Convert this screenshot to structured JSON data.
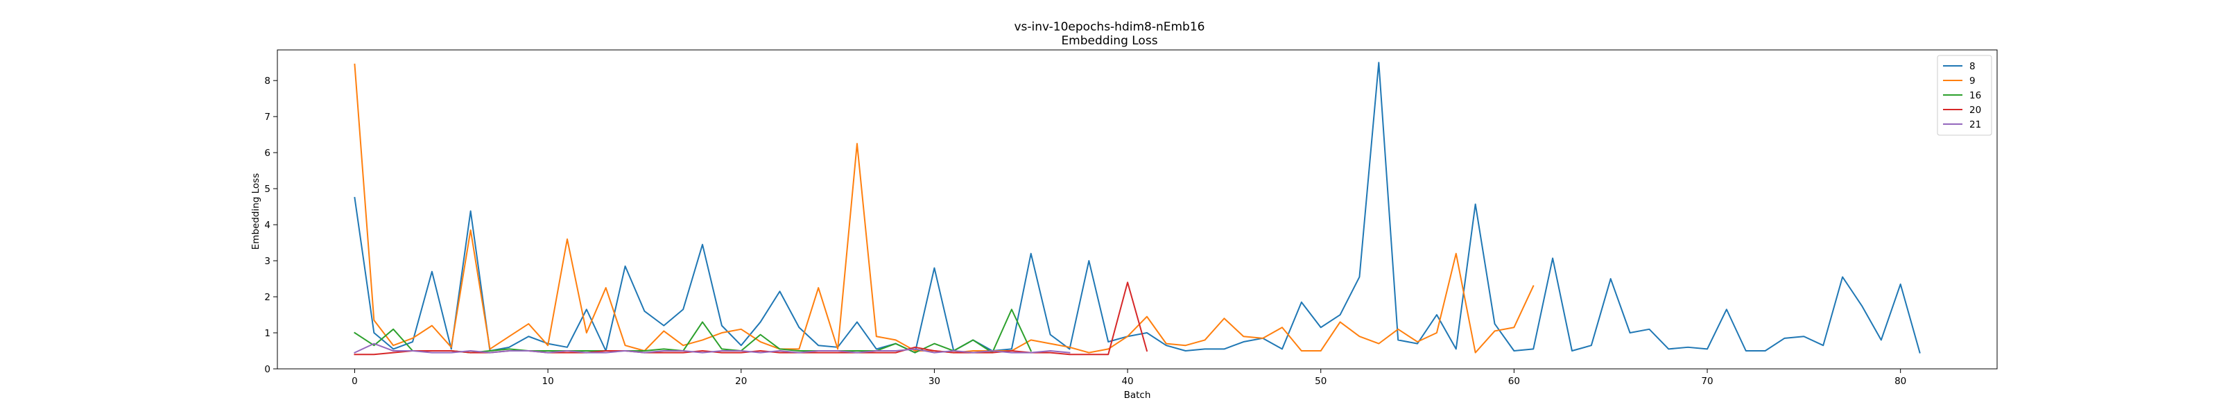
{
  "chart_data": {
    "type": "line",
    "title": "vs-inv-10epochs-hdim8-nEmb16",
    "subtitle": "Embedding Loss",
    "xlabel": "Batch",
    "ylabel": "Embedding Loss",
    "xlim": [
      -4,
      85
    ],
    "ylim": [
      0,
      8.85
    ],
    "xticks": [
      0,
      10,
      20,
      30,
      40,
      50,
      60,
      70,
      80
    ],
    "yticks": [
      0,
      1,
      2,
      3,
      4,
      5,
      6,
      7,
      8
    ],
    "grid": false,
    "legend_position": "top-right",
    "series": [
      {
        "name": "8",
        "color": "#1f77b4",
        "x": [
          0,
          1,
          2,
          3,
          4,
          5,
          6,
          7,
          8,
          9,
          10,
          11,
          12,
          13,
          14,
          15,
          16,
          17,
          18,
          19,
          20,
          21,
          22,
          23,
          24,
          25,
          26,
          27,
          28,
          29,
          30,
          31,
          32,
          33,
          34,
          35,
          36,
          37,
          38,
          39,
          40,
          41,
          42,
          43,
          44,
          45,
          46,
          47,
          48,
          49,
          50,
          51,
          52,
          53,
          54,
          55,
          56,
          57,
          58,
          59,
          60,
          61,
          62,
          63,
          64,
          65,
          66,
          67,
          68,
          69,
          70,
          71,
          72,
          73,
          74,
          75,
          76,
          77,
          78,
          79,
          80,
          81
        ],
        "values": [
          4.75,
          1.0,
          0.55,
          0.75,
          2.7,
          0.55,
          4.38,
          0.5,
          0.6,
          0.9,
          0.7,
          0.6,
          1.65,
          0.5,
          2.85,
          1.6,
          1.2,
          1.65,
          3.45,
          1.2,
          0.65,
          1.3,
          2.15,
          1.15,
          0.65,
          0.6,
          1.3,
          0.55,
          0.7,
          0.45,
          2.8,
          0.5,
          0.8,
          0.5,
          0.55,
          3.2,
          0.95,
          0.55,
          3.0,
          0.75,
          0.9,
          1.0,
          0.65,
          0.5,
          0.55,
          0.55,
          0.75,
          0.85,
          0.55,
          1.85,
          1.15,
          1.5,
          2.55,
          8.5,
          0.8,
          0.7,
          1.5,
          0.55,
          4.57,
          1.25,
          0.5,
          0.55,
          3.07,
          0.5,
          0.65,
          2.5,
          1.0,
          1.1,
          0.55,
          0.6,
          0.55,
          1.65,
          0.5,
          0.5,
          0.85,
          0.9,
          0.65,
          2.55,
          1.75,
          0.8,
          2.35,
          0.45
        ]
      },
      {
        "name": "9",
        "color": "#ff7f0e",
        "x": [
          0,
          1,
          2,
          3,
          4,
          5,
          6,
          7,
          8,
          9,
          10,
          11,
          12,
          13,
          14,
          15,
          16,
          17,
          18,
          19,
          20,
          21,
          22,
          23,
          24,
          25,
          26,
          27,
          28,
          29,
          30,
          31,
          32,
          33,
          34,
          35,
          36,
          37,
          38,
          39,
          40,
          41,
          42,
          43,
          44,
          45,
          46,
          47,
          48,
          49,
          50,
          51,
          52,
          53,
          54,
          55,
          56,
          57,
          58,
          59,
          60,
          61
        ],
        "values": [
          8.45,
          1.35,
          0.65,
          0.85,
          1.2,
          0.6,
          3.85,
          0.55,
          0.9,
          1.25,
          0.65,
          3.6,
          1.0,
          2.25,
          0.65,
          0.5,
          1.05,
          0.65,
          0.8,
          1.0,
          1.1,
          0.75,
          0.55,
          0.55,
          2.25,
          0.55,
          6.25,
          0.9,
          0.8,
          0.5,
          0.5,
          0.45,
          0.5,
          0.5,
          0.5,
          0.8,
          0.7,
          0.6,
          0.45,
          0.55,
          0.9,
          1.45,
          0.7,
          0.65,
          0.8,
          1.4,
          0.9,
          0.85,
          1.15,
          0.5,
          0.5,
          1.3,
          0.9,
          0.7,
          1.1,
          0.75,
          1.0,
          3.2,
          0.45,
          1.05,
          1.15,
          2.3
        ]
      },
      {
        "name": "16",
        "color": "#2ca02c",
        "x": [
          0,
          1,
          2,
          3,
          4,
          5,
          6,
          7,
          8,
          9,
          10,
          11,
          12,
          13,
          14,
          15,
          16,
          17,
          18,
          19,
          20,
          21,
          22,
          23,
          24,
          25,
          26,
          27,
          28,
          29,
          30,
          31,
          32,
          33,
          34,
          35
        ],
        "values": [
          1.0,
          0.65,
          1.1,
          0.5,
          0.5,
          0.5,
          0.45,
          0.5,
          0.55,
          0.5,
          0.5,
          0.5,
          0.5,
          0.5,
          0.5,
          0.5,
          0.55,
          0.5,
          1.3,
          0.55,
          0.5,
          0.95,
          0.55,
          0.5,
          0.5,
          0.5,
          0.5,
          0.5,
          0.7,
          0.45,
          0.7,
          0.5,
          0.8,
          0.45,
          1.65,
          0.5
        ]
      },
      {
        "name": "20",
        "color": "#d62728",
        "x": [
          0,
          1,
          2,
          3,
          4,
          5,
          6,
          7,
          8,
          9,
          10,
          11,
          12,
          13,
          14,
          15,
          16,
          17,
          18,
          19,
          20,
          21,
          22,
          23,
          24,
          25,
          26,
          27,
          28,
          29,
          30,
          31,
          32,
          33,
          34,
          35,
          36,
          37,
          38,
          39,
          40,
          41
        ],
        "values": [
          0.4,
          0.4,
          0.45,
          0.5,
          0.5,
          0.5,
          0.45,
          0.45,
          0.5,
          0.5,
          0.45,
          0.45,
          0.45,
          0.5,
          0.5,
          0.45,
          0.45,
          0.45,
          0.5,
          0.45,
          0.45,
          0.5,
          0.45,
          0.45,
          0.45,
          0.45,
          0.45,
          0.45,
          0.45,
          0.6,
          0.5,
          0.45,
          0.45,
          0.45,
          0.5,
          0.45,
          0.45,
          0.4,
          0.4,
          0.4,
          2.4,
          0.5
        ]
      },
      {
        "name": "21",
        "color": "#9467bd",
        "x": [
          0,
          1,
          2,
          3,
          4,
          5,
          6,
          7,
          8,
          9,
          10,
          11,
          12,
          13,
          14,
          15,
          16,
          17,
          18,
          19,
          20,
          21,
          22,
          23,
          24,
          25,
          26,
          27,
          28,
          29,
          30,
          31,
          32,
          33,
          34,
          35,
          36,
          37
        ],
        "values": [
          0.45,
          0.7,
          0.5,
          0.5,
          0.45,
          0.45,
          0.5,
          0.45,
          0.5,
          0.5,
          0.45,
          0.5,
          0.45,
          0.45,
          0.5,
          0.45,
          0.5,
          0.5,
          0.45,
          0.5,
          0.5,
          0.45,
          0.5,
          0.45,
          0.5,
          0.5,
          0.45,
          0.5,
          0.5,
          0.55,
          0.45,
          0.5,
          0.45,
          0.5,
          0.45,
          0.45,
          0.5,
          0.45
        ]
      }
    ]
  }
}
